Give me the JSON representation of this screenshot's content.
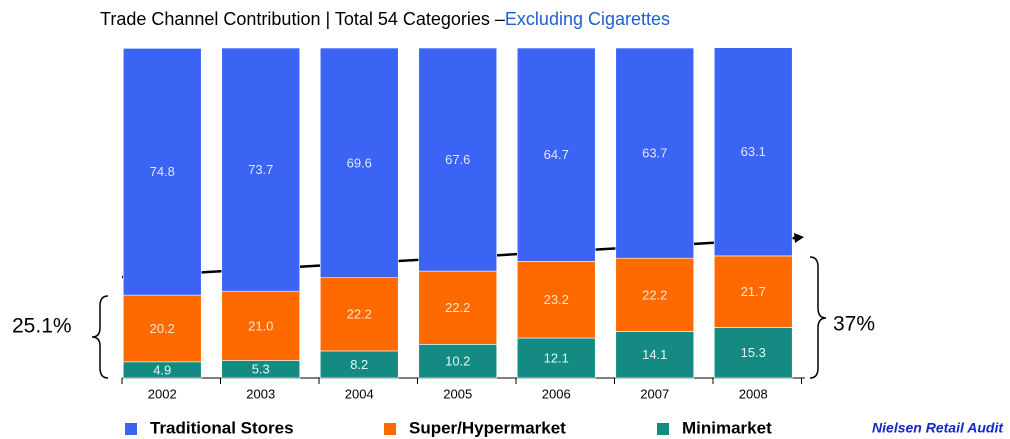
{
  "chart_data": {
    "type": "stacked_bar",
    "title": "Trade Channel Contribution  | Total 54 Categories –",
    "title_highlight": "Excluding Cigarettes",
    "categories": [
      "2002",
      "2003",
      "2004",
      "2005",
      "2006",
      "2007",
      "2008"
    ],
    "series": [
      {
        "name": "Traditional Stores",
        "color": "#3b64f4",
        "values": [
          74.8,
          73.7,
          69.6,
          67.6,
          64.7,
          63.7,
          63.1
        ]
      },
      {
        "name": "Super/Hypermarket",
        "color": "#ff6a00",
        "values": [
          20.2,
          21.0,
          22.2,
          22.2,
          23.2,
          22.2,
          21.7
        ]
      },
      {
        "name": "Minimarket",
        "color": "#148a82",
        "values": [
          4.9,
          5.3,
          8.2,
          10.2,
          12.1,
          14.1,
          15.3
        ]
      }
    ],
    "value_labels": [
      [
        "74.8",
        "73.7",
        "69.6",
        "67.6",
        "64.7",
        "63.7",
        "63.1"
      ],
      [
        "20.2",
        "21.0",
        "22.2",
        "22.2",
        "23.2",
        "22.2",
        "21.7"
      ],
      [
        "4.9",
        "5.3",
        "8.2",
        "10.2",
        "12.1",
        "14.1",
        "15.3"
      ]
    ],
    "ylim": [
      0,
      100
    ],
    "annotations": [
      "25.1%",
      "37%"
    ],
    "source": "Nielsen Retail Audit"
  }
}
